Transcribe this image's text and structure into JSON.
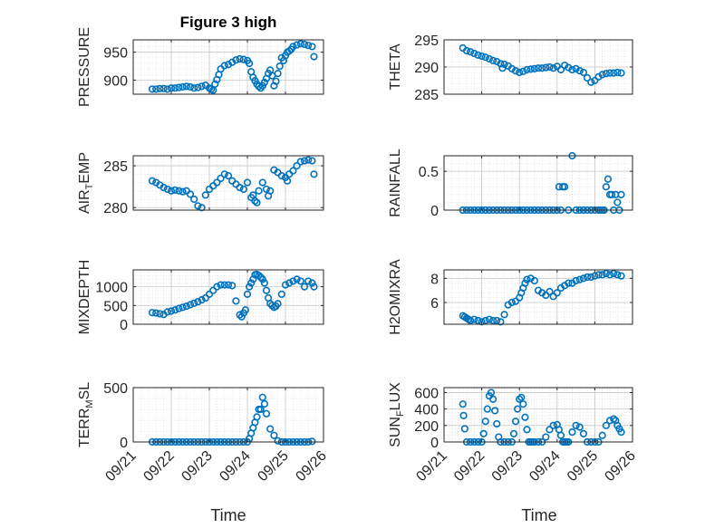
{
  "figure_title": "Figure 3 high",
  "chart_data": [
    {
      "type": "scatter",
      "title": "Figure 3 high",
      "ylabel": "PRESSURE",
      "ylim": [
        875,
        972
      ],
      "yticks": [
        900,
        950
      ],
      "xlim": [
        0,
        5
      ],
      "xticks": [
        0,
        1,
        2,
        3,
        4,
        5
      ],
      "xticklabels": [
        "09/21",
        "09/22",
        "09/23",
        "09/24",
        "09/25",
        "09/26"
      ],
      "grid": true,
      "color": "#0072BD",
      "series": [
        {
          "x": [
            0.5,
            0.6,
            0.7,
            0.8,
            0.9,
            1.0,
            1.1,
            1.2,
            1.3,
            1.4,
            1.5,
            1.6,
            1.7,
            1.8,
            1.9,
            2.0,
            2.05,
            2.1,
            2.15,
            2.2,
            2.25,
            2.3,
            2.4,
            2.5,
            2.6,
            2.7,
            2.8,
            2.9,
            3.0,
            3.05,
            3.1,
            3.15,
            3.2,
            3.25,
            3.3,
            3.35,
            3.4,
            3.45,
            3.5,
            3.55,
            3.6,
            3.65,
            3.7,
            3.75,
            3.8,
            3.85,
            3.9,
            3.95,
            4.0,
            4.05,
            4.1,
            4.15,
            4.2,
            4.3,
            4.4,
            4.5,
            4.6,
            4.7,
            4.75
          ],
          "y": [
            884,
            884,
            885,
            885,
            884,
            886,
            886,
            887,
            888,
            889,
            888,
            886,
            887,
            889,
            891,
            886,
            884,
            882,
            893,
            901,
            910,
            920,
            926,
            928,
            932,
            936,
            938,
            937,
            935,
            930,
            915,
            905,
            899,
            893,
            889,
            886,
            890,
            896,
            903,
            912,
            918,
            908,
            890,
            898,
            912,
            925,
            940,
            935,
            944,
            950,
            952,
            955,
            960,
            963,
            965,
            964,
            962,
            960,
            942
          ]
        }
      ]
    },
    {
      "type": "scatter",
      "ylabel": "THETA",
      "ylim": [
        285,
        295
      ],
      "yticks": [
        285,
        290,
        295
      ],
      "xlim": [
        0,
        5
      ],
      "xticks": [
        0,
        1,
        2,
        3,
        4,
        5
      ],
      "xticklabels": [
        "09/21",
        "09/22",
        "09/23",
        "09/24",
        "09/25",
        "09/26"
      ],
      "grid": true,
      "color": "#0072BD",
      "series": [
        {
          "x": [
            0.5,
            0.6,
            0.7,
            0.8,
            0.9,
            1.0,
            1.1,
            1.2,
            1.3,
            1.4,
            1.5,
            1.55,
            1.6,
            1.7,
            1.8,
            1.9,
            2.0,
            2.1,
            2.2,
            2.3,
            2.4,
            2.5,
            2.6,
            2.7,
            2.8,
            2.9,
            3.0,
            3.1,
            3.2,
            3.3,
            3.4,
            3.5,
            3.6,
            3.7,
            3.8,
            3.9,
            4.0,
            4.1,
            4.2,
            4.3,
            4.4,
            4.5,
            4.6,
            4.7
          ],
          "y": [
            293.5,
            293.0,
            292.8,
            292.5,
            292.2,
            292.0,
            291.8,
            291.5,
            291.2,
            291.0,
            290.6,
            289.8,
            290.5,
            290.2,
            289.7,
            289.3,
            289.0,
            289.2,
            289.5,
            289.6,
            289.7,
            289.8,
            289.8,
            289.9,
            290.0,
            289.8,
            290.1,
            289.5,
            290.3,
            289.9,
            289.5,
            289.7,
            289.3,
            289.0,
            288.0,
            287.2,
            287.5,
            288.2,
            288.6,
            288.8,
            288.9,
            288.9,
            289.0,
            288.9
          ]
        }
      ]
    },
    {
      "type": "scatter",
      "ylabel": "AIR_TEMP",
      "ylim": [
        279.7,
        286.2
      ],
      "yticks": [
        280,
        285
      ],
      "xlim": [
        0,
        5
      ],
      "xticks": [
        0,
        1,
        2,
        3,
        4,
        5
      ],
      "xticklabels": [
        "09/21",
        "09/22",
        "09/23",
        "09/24",
        "09/25",
        "09/26"
      ],
      "grid": true,
      "color": "#0072BD",
      "series": [
        {
          "x": [
            0.5,
            0.6,
            0.7,
            0.8,
            0.9,
            1.0,
            1.1,
            1.2,
            1.3,
            1.4,
            1.5,
            1.6,
            1.7,
            1.8,
            1.9,
            2.0,
            2.1,
            2.2,
            2.3,
            2.4,
            2.5,
            2.6,
            2.7,
            2.8,
            2.9,
            3.0,
            3.1,
            3.15,
            3.2,
            3.25,
            3.3,
            3.4,
            3.5,
            3.55,
            3.6,
            3.7,
            3.8,
            3.9,
            4.0,
            4.05,
            4.1,
            4.2,
            4.3,
            4.4,
            4.5,
            4.6,
            4.7,
            4.75
          ],
          "y": [
            283.2,
            283.0,
            282.7,
            282.4,
            282.2,
            282.0,
            282.1,
            282.0,
            281.9,
            282.0,
            281.6,
            281.0,
            280.2,
            280.0,
            281.5,
            282.2,
            282.6,
            283.0,
            283.5,
            284.0,
            283.8,
            283.2,
            282.8,
            282.4,
            282.2,
            283.0,
            281.2,
            281.5,
            280.8,
            280.6,
            282.0,
            283.0,
            282.2,
            281.4,
            282.0,
            284.5,
            284.2,
            283.8,
            283.6,
            283.2,
            284.0,
            284.4,
            285.0,
            285.5,
            285.6,
            285.7,
            285.6,
            284.0
          ]
        }
      ]
    },
    {
      "type": "scatter",
      "ylabel": "RAINFALL",
      "ylim": [
        0,
        0.7
      ],
      "yticks": [
        0,
        0.5
      ],
      "xlim": [
        0,
        5
      ],
      "xticks": [
        0,
        1,
        2,
        3,
        4,
        5
      ],
      "xticklabels": [
        "09/21",
        "09/22",
        "09/23",
        "09/24",
        "09/25",
        "09/26"
      ],
      "grid": true,
      "color": "#0072BD",
      "series": [
        {
          "x": [
            0.5,
            0.6,
            0.7,
            0.8,
            0.9,
            1.0,
            1.1,
            1.2,
            1.3,
            1.4,
            1.5,
            1.6,
            1.7,
            1.8,
            1.9,
            2.0,
            2.1,
            2.2,
            2.3,
            2.4,
            2.5,
            2.6,
            2.7,
            2.8,
            2.9,
            3.0,
            3.05,
            3.1,
            3.15,
            3.2,
            3.3,
            3.4,
            3.5,
            3.6,
            3.7,
            3.8,
            3.9,
            4.0,
            4.1,
            4.15,
            4.2,
            4.25,
            4.3,
            4.35,
            4.4,
            4.45,
            4.5,
            4.55,
            4.6,
            4.65,
            4.7
          ],
          "y": [
            0,
            0,
            0,
            0,
            0,
            0,
            0,
            0,
            0,
            0,
            0,
            0,
            0,
            0,
            0,
            0,
            0,
            0,
            0,
            0,
            0,
            0,
            0,
            0,
            0,
            0,
            0.3,
            0,
            0.3,
            0.3,
            0,
            0.7,
            0,
            0,
            0,
            0,
            0,
            0,
            0,
            0,
            0,
            0,
            0.3,
            0.4,
            0.2,
            0.2,
            0,
            0.2,
            0.1,
            0,
            0.2
          ]
        }
      ]
    },
    {
      "type": "scatter",
      "ylabel": "MIXDEPTH",
      "ylim": [
        0,
        1450
      ],
      "yticks": [
        0,
        500,
        1000
      ],
      "xlim": [
        0,
        5
      ],
      "xticks": [
        0,
        1,
        2,
        3,
        4,
        5
      ],
      "xticklabels": [
        "09/21",
        "09/22",
        "09/23",
        "09/24",
        "09/25",
        "09/26"
      ],
      "grid": true,
      "color": "#0072BD",
      "series": [
        {
          "x": [
            0.5,
            0.6,
            0.7,
            0.8,
            0.9,
            1.0,
            1.1,
            1.2,
            1.3,
            1.4,
            1.5,
            1.6,
            1.7,
            1.8,
            1.9,
            2.0,
            2.1,
            2.2,
            2.3,
            2.4,
            2.5,
            2.6,
            2.7,
            2.8,
            2.85,
            2.9,
            2.95,
            3.0,
            3.05,
            3.1,
            3.15,
            3.2,
            3.25,
            3.3,
            3.35,
            3.4,
            3.45,
            3.5,
            3.55,
            3.6,
            3.65,
            3.7,
            3.75,
            3.8,
            3.9,
            4.0,
            4.1,
            4.2,
            4.3,
            4.4,
            4.5,
            4.6,
            4.7,
            4.75
          ],
          "y": [
            310,
            300,
            280,
            260,
            330,
            350,
            380,
            420,
            450,
            480,
            520,
            560,
            600,
            650,
            700,
            800,
            900,
            1000,
            1050,
            1050,
            1050,
            1030,
            620,
            250,
            200,
            300,
            380,
            800,
            1000,
            1100,
            1200,
            1320,
            1330,
            1300,
            1250,
            1200,
            1100,
            900,
            700,
            550,
            500,
            450,
            480,
            550,
            800,
            1050,
            1100,
            1150,
            1200,
            1150,
            1000,
            1150,
            1100,
            1000
          ]
        }
      ]
    },
    {
      "type": "scatter",
      "ylabel": "H2OMIXRA",
      "ylim": [
        4.2,
        8.7
      ],
      "yticks": [
        6,
        8
      ],
      "xlim": [
        0,
        5
      ],
      "xticks": [
        0,
        1,
        2,
        3,
        4,
        5
      ],
      "xticklabels": [
        "09/21",
        "09/22",
        "09/23",
        "09/24",
        "09/25",
        "09/26"
      ],
      "grid": true,
      "color": "#0072BD",
      "series": [
        {
          "x": [
            0.5,
            0.55,
            0.6,
            0.65,
            0.7,
            0.8,
            0.9,
            1.0,
            1.1,
            1.2,
            1.3,
            1.4,
            1.5,
            1.6,
            1.7,
            1.8,
            1.9,
            2.0,
            2.05,
            2.1,
            2.15,
            2.2,
            2.3,
            2.4,
            2.5,
            2.6,
            2.7,
            2.8,
            2.9,
            3.0,
            3.1,
            3.2,
            3.3,
            3.4,
            3.5,
            3.6,
            3.7,
            3.8,
            3.9,
            4.0,
            4.1,
            4.2,
            4.3,
            4.4,
            4.5,
            4.6,
            4.7
          ],
          "y": [
            4.9,
            4.8,
            4.7,
            4.6,
            4.5,
            4.6,
            4.5,
            4.4,
            4.5,
            4.6,
            4.5,
            4.5,
            4.4,
            5.0,
            5.8,
            6.0,
            6.1,
            6.4,
            6.8,
            7.2,
            7.6,
            7.9,
            8.0,
            7.8,
            7.0,
            6.8,
            6.6,
            6.9,
            6.5,
            6.8,
            7.2,
            7.4,
            7.6,
            7.6,
            7.8,
            7.9,
            8.0,
            8.1,
            8.1,
            8.2,
            8.3,
            8.3,
            8.4,
            8.3,
            8.4,
            8.3,
            8.2
          ]
        }
      ]
    },
    {
      "type": "scatter",
      "ylabel": "TERR_MSL",
      "ylim": [
        0,
        500
      ],
      "yticks": [
        0,
        500
      ],
      "xlim": [
        0,
        5
      ],
      "xticks": [
        0,
        1,
        2,
        3,
        4,
        5
      ],
      "xticklabels": [
        "09/21",
        "09/22",
        "09/23",
        "09/24",
        "09/25",
        "09/26"
      ],
      "grid": true,
      "color": "#0072BD",
      "series": [
        {
          "x": [
            0.5,
            0.6,
            0.7,
            0.8,
            0.9,
            1.0,
            1.1,
            1.2,
            1.3,
            1.4,
            1.5,
            1.6,
            1.7,
            1.8,
            1.9,
            2.0,
            2.1,
            2.2,
            2.3,
            2.4,
            2.5,
            2.6,
            2.7,
            2.8,
            2.9,
            3.0,
            3.05,
            3.1,
            3.15,
            3.2,
            3.25,
            3.3,
            3.35,
            3.4,
            3.45,
            3.5,
            3.6,
            3.7,
            3.8,
            3.9,
            4.0,
            4.1,
            4.2,
            4.3,
            4.4,
            4.5,
            4.6,
            4.7
          ],
          "y": [
            0,
            0,
            0,
            0,
            0,
            0,
            0,
            0,
            0,
            0,
            0,
            0,
            0,
            0,
            0,
            0,
            0,
            0,
            0,
            0,
            0,
            0,
            0,
            0,
            0,
            0,
            30,
            80,
            130,
            180,
            230,
            300,
            300,
            410,
            350,
            260,
            120,
            60,
            10,
            0,
            0,
            0,
            0,
            0,
            0,
            0,
            0,
            5
          ]
        }
      ]
    },
    {
      "type": "scatter",
      "ylabel": "SUN_FLUX",
      "ylim": [
        0,
        660
      ],
      "yticks": [
        0,
        200,
        400,
        600
      ],
      "xlim": [
        0,
        5
      ],
      "xticks": [
        0,
        1,
        2,
        3,
        4,
        5
      ],
      "xticklabels": [
        "09/21",
        "09/22",
        "09/23",
        "09/24",
        "09/25",
        "09/26"
      ],
      "grid": true,
      "color": "#0072BD",
      "series": [
        {
          "x": [
            0.5,
            0.52,
            0.55,
            0.6,
            0.7,
            0.8,
            0.9,
            1.0,
            1.05,
            1.1,
            1.15,
            1.2,
            1.25,
            1.3,
            1.35,
            1.4,
            1.45,
            1.5,
            1.6,
            1.7,
            1.8,
            1.85,
            1.9,
            1.95,
            2.0,
            2.05,
            2.1,
            2.15,
            2.2,
            2.25,
            2.3,
            2.35,
            2.4,
            2.5,
            2.6,
            2.7,
            2.8,
            2.9,
            3.0,
            3.05,
            3.1,
            3.15,
            3.2,
            3.25,
            3.3,
            3.4,
            3.5,
            3.6,
            3.7,
            3.8,
            3.9,
            4.0,
            4.1,
            4.2,
            4.3,
            4.4,
            4.5,
            4.55,
            4.6,
            4.65,
            4.7
          ],
          "y": [
            460,
            320,
            160,
            0,
            0,
            0,
            0,
            0,
            100,
            250,
            400,
            560,
            600,
            520,
            380,
            220,
            60,
            0,
            0,
            0,
            0,
            100,
            250,
            400,
            520,
            540,
            460,
            300,
            150,
            0,
            0,
            0,
            0,
            0,
            0,
            60,
            150,
            200,
            210,
            150,
            80,
            0,
            0,
            0,
            0,
            120,
            200,
            180,
            100,
            0,
            0,
            0,
            0,
            80,
            200,
            260,
            280,
            260,
            200,
            160,
            120
          ]
        }
      ]
    }
  ],
  "x_axis_title": "Time"
}
